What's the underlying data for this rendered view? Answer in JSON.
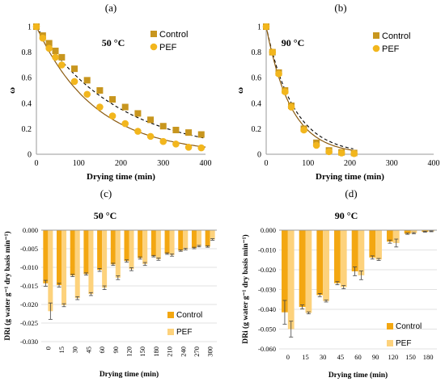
{
  "colors": {
    "control": "#C8961E",
    "pef": "#F2B61D",
    "bar_control": "#F3A712",
    "bar_pef": "#FDD27C",
    "axis": "#999999",
    "grid": "#D9D9D9",
    "error": "#444444",
    "fit_control": "#000000",
    "fit_pef": "#8B5A0E"
  },
  "chart_data": [
    {
      "id": "a",
      "type": "scatter",
      "panel_label": "(a)",
      "annotation": "50 °C",
      "xlabel": "Drying time (min)",
      "ylabel": "ω",
      "xlim": [
        0,
        400
      ],
      "ylim": [
        0,
        1
      ],
      "xticks": [
        "0",
        "100",
        "200",
        "300",
        "400"
      ],
      "yticks": [
        "0",
        "0.2",
        "0.4",
        "0.6",
        "0.8",
        "1"
      ],
      "legend_position": "top-right",
      "series": [
        {
          "name": "Control",
          "marker": "square",
          "x": [
            0,
            15,
            30,
            45,
            60,
            90,
            120,
            150,
            180,
            210,
            240,
            270,
            300,
            330,
            360,
            390
          ],
          "y": [
            1.0,
            0.93,
            0.87,
            0.81,
            0.76,
            0.67,
            0.58,
            0.5,
            0.43,
            0.37,
            0.32,
            0.27,
            0.22,
            0.19,
            0.17,
            0.155
          ],
          "fit": "dashed",
          "fit_k": 0.0052
        },
        {
          "name": "PEF",
          "marker": "circle",
          "x": [
            0,
            15,
            30,
            45,
            60,
            90,
            120,
            150,
            180,
            210,
            240,
            270,
            300,
            330,
            360,
            390
          ],
          "y": [
            1.0,
            0.91,
            0.83,
            0.76,
            0.7,
            0.57,
            0.47,
            0.37,
            0.3,
            0.24,
            0.18,
            0.14,
            0.1,
            0.08,
            0.055,
            0.05
          ],
          "fit": "solid",
          "fit_k": 0.0072
        }
      ]
    },
    {
      "id": "b",
      "type": "scatter",
      "panel_label": "(b)",
      "annotation": "90 °C",
      "xlabel": "Drying time (min)",
      "ylabel": "ω",
      "xlim": [
        0,
        400
      ],
      "ylim": [
        0,
        1
      ],
      "xticks": [
        "0",
        "100",
        "200",
        "300",
        "400"
      ],
      "yticks": [
        "0",
        "0.2",
        "0.4",
        "0.6",
        "0.8",
        "1"
      ],
      "legend_position": "top-right",
      "series": [
        {
          "name": "Control",
          "marker": "square",
          "x": [
            0,
            15,
            30,
            45,
            60,
            90,
            120,
            150,
            180,
            210
          ],
          "y": [
            1.0,
            0.8,
            0.64,
            0.5,
            0.38,
            0.2,
            0.09,
            0.03,
            0.015,
            0.01
          ],
          "fit": "dashed",
          "fit_k": 0.0152
        },
        {
          "name": "PEF",
          "marker": "circle",
          "x": [
            0,
            15,
            30,
            45,
            60,
            90,
            120,
            150,
            180,
            210
          ],
          "y": [
            1.0,
            0.8,
            0.63,
            0.49,
            0.37,
            0.19,
            0.07,
            0.02,
            0.01,
            0.005
          ],
          "fit": "solid",
          "fit_k": 0.0168
        }
      ]
    },
    {
      "id": "c",
      "type": "bar",
      "panel_label": "(c)",
      "annotation": "50 °C",
      "xlabel": "Drying time (min)",
      "ylabel": "DRi (g water g⁻¹ dry basis min⁻¹)",
      "ylim": [
        -0.03,
        0
      ],
      "yticks": [
        "-0.030",
        "-0.025",
        "-0.020",
        "-0.015",
        "-0.010",
        "-0.005",
        "0.000"
      ],
      "legend_position": "bottom-right",
      "categories": [
        "0",
        "15",
        "30",
        "45",
        "60",
        "90",
        "120",
        "150",
        "180",
        "210",
        "240",
        "270",
        "300"
      ],
      "series": [
        {
          "name": "Control",
          "values": [
            -0.0143,
            -0.0148,
            -0.0122,
            -0.0118,
            -0.0107,
            -0.0092,
            -0.0083,
            -0.0075,
            -0.007,
            -0.0063,
            -0.0055,
            -0.0048,
            -0.0044
          ],
          "errors": [
            0.0008,
            0.0005,
            0.0003,
            0.0003,
            0.0004,
            0.0003,
            0.0003,
            0.0003,
            0.0002,
            0.0002,
            0.0002,
            0.0002,
            0.0002
          ]
        },
        {
          "name": "PEF",
          "values": [
            -0.0218,
            -0.0202,
            -0.0183,
            -0.0172,
            -0.0155,
            -0.0128,
            -0.0105,
            -0.0091,
            -0.0078,
            -0.0067,
            -0.0051,
            -0.0043,
            -0.0025
          ],
          "errors": [
            0.0022,
            0.0004,
            0.0004,
            0.0004,
            0.0005,
            0.0005,
            0.0004,
            0.0004,
            0.0003,
            0.0003,
            0.0002,
            0.0002,
            0.0002
          ]
        }
      ]
    },
    {
      "id": "d",
      "type": "bar",
      "panel_label": "(d)",
      "annotation": "90 °C",
      "xlabel": "Drying time (min)",
      "ylabel": "DRi (g water g⁻¹ dry basis min⁻¹)",
      "ylim": [
        -0.06,
        0
      ],
      "yticks": [
        "-0.060",
        "-0.050",
        "-0.040",
        "-0.030",
        "-0.020",
        "-0.010",
        "0.000"
      ],
      "legend_position": "bottom-right",
      "categories": [
        "0",
        "15",
        "30",
        "45",
        "60",
        "90",
        "120",
        "150",
        "180"
      ],
      "series": [
        {
          "name": "Control",
          "values": [
            -0.0415,
            -0.0388,
            -0.0328,
            -0.0268,
            -0.0208,
            -0.0138,
            -0.0058,
            -0.0018,
            -0.0008
          ],
          "errors": [
            0.006,
            0.001,
            0.0008,
            0.0008,
            0.0022,
            0.0008,
            0.0008,
            0.0003,
            0.0002
          ]
        },
        {
          "name": "PEF",
          "values": [
            -0.05,
            -0.0418,
            -0.0358,
            -0.0288,
            -0.0228,
            -0.0148,
            -0.0065,
            -0.0015,
            -0.0006
          ],
          "errors": [
            0.004,
            0.0005,
            0.0005,
            0.0008,
            0.0022,
            0.0005,
            0.002,
            0.0003,
            0.0002
          ]
        }
      ]
    }
  ]
}
